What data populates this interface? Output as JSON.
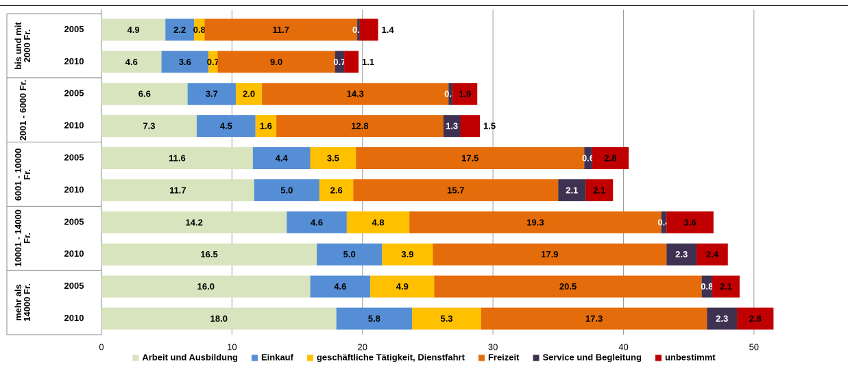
{
  "chart_data": {
    "type": "stacked-bar-horizontal",
    "groups": [
      "bis und mit 2000 Fr.",
      "2001 - 6000 Fr.",
      "6001 - 10000 Fr.",
      "10001 - 14000 Fr.",
      "mehr als 14000 Fr."
    ],
    "categories": [
      "2005",
      "2010",
      "2005",
      "2010",
      "2005",
      "2010",
      "2005",
      "2010",
      "2005",
      "2010"
    ],
    "series": [
      {
        "name": "Arbeit und Ausbildung",
        "color": "#d7e4bd",
        "values": [
          4.9,
          4.6,
          6.6,
          7.3,
          11.6,
          11.7,
          14.2,
          16.5,
          16.0,
          18.0
        ],
        "value_labels": [
          "4.9",
          "4.6",
          "6.6",
          "7.3",
          "11.6",
          "11.7",
          "14.2",
          "16.5",
          "16.0",
          "18.0"
        ]
      },
      {
        "name": "Einkauf",
        "color": "#558ed5",
        "values": [
          2.2,
          3.6,
          3.7,
          4.5,
          4.4,
          5.0,
          4.6,
          5.0,
          4.6,
          5.8
        ],
        "value_labels": [
          "2.2",
          "3.6",
          "3.7",
          "4.5",
          "4.4",
          "5.0",
          "4.6",
          "5.0",
          "4.6",
          "5.8"
        ]
      },
      {
        "name": "geschäftliche Tätigkeit, Dienstfahrt",
        "color": "#ffc000",
        "values": [
          0.8,
          0.7,
          2.0,
          1.6,
          3.5,
          2.6,
          4.8,
          3.9,
          4.9,
          5.3
        ],
        "value_labels": [
          "0.8",
          "0.7",
          "2.0",
          "1.6",
          "3.5",
          "2.6",
          "4.8",
          "3.9",
          "4.9",
          "5.3"
        ]
      },
      {
        "name": "Freizeit",
        "color": "#e46c0a",
        "values": [
          11.7,
          9.0,
          14.3,
          12.8,
          17.5,
          15.7,
          19.3,
          17.9,
          20.5,
          17.3
        ],
        "value_labels": [
          "11.7",
          "9.0",
          "14.3",
          "12.8",
          "17.5",
          "15.7",
          "19.3",
          "17.9",
          "20.5",
          "17.3"
        ]
      },
      {
        "name": "Service und Begleitung",
        "color": "#3f3151",
        "values": [
          0.2,
          0.7,
          0.3,
          1.3,
          0.6,
          2.1,
          0.4,
          2.3,
          0.8,
          2.3
        ],
        "value_labels": [
          "0.2",
          "0.7",
          "0.3",
          "1.3",
          "0.6",
          "2.1",
          "0.4",
          "2.3",
          "0.8",
          "2.3"
        ]
      },
      {
        "name": "unbestimmt",
        "color": "#c00000",
        "values": [
          1.4,
          1.1,
          1.9,
          1.5,
          2.8,
          2.1,
          3.6,
          2.4,
          2.1,
          2.8
        ],
        "value_labels": [
          "1.4",
          "1.1",
          "1.9",
          "1.5",
          "2.8",
          "2.1",
          "3.6",
          "2.4",
          "2.1",
          "2.8"
        ]
      }
    ],
    "xlim": [
      0,
      55
    ],
    "xticks": [
      0,
      10,
      20,
      30,
      40,
      50
    ],
    "grid": true,
    "legend": "bottom"
  }
}
